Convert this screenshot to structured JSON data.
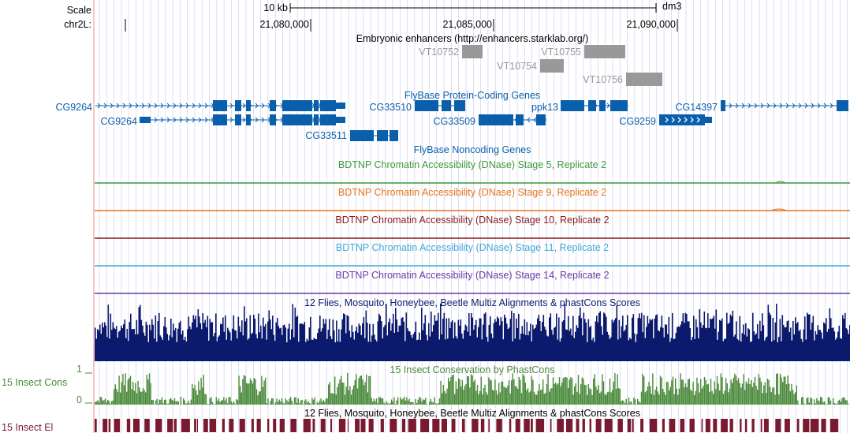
{
  "ruler": {
    "scale_label": "Scale",
    "scale_bar_label": "10 kb",
    "assembly": "dm3",
    "chrom_label": "chr2L:",
    "positions": [
      "21,080,000",
      "21,085,000",
      "21,090,000"
    ]
  },
  "enhancers": {
    "title": "Embryonic enhancers (http://enhancers.starklab.org/)",
    "items": [
      "VT10752",
      "VT10755",
      "VT10754",
      "VT10756"
    ]
  },
  "genes": {
    "title": "FlyBase Protein-Coding Genes",
    "names": [
      "CG9264",
      "CG9264",
      "CG33510",
      "ppk13",
      "CG14397",
      "CG33509",
      "CG9259",
      "CG33511"
    ]
  },
  "noncoding": {
    "title": "FlyBase Noncoding Genes"
  },
  "dnase_tracks": [
    {
      "title": "BDTNP Chromatin Accessibility (DNase) Stage 5, Replicate 2",
      "color": "#3c9a3c"
    },
    {
      "title": "BDTNP Chromatin Accessibility (DNase) Stage 9, Replicate 2",
      "color": "#e8741c"
    },
    {
      "title": "BDTNP Chromatin Accessibility (DNase) Stage 10, Replicate 2",
      "color": "#8b1a1a"
    },
    {
      "title": "BDTNP Chromatin Accessibility (DNase) Stage 11, Replicate 2",
      "color": "#3ea8d8"
    },
    {
      "title": "BDTNP Chromatin Accessibility (DNase) Stage 14, Replicate 2",
      "color": "#6a3aa8"
    }
  ],
  "multiz": {
    "title": "12 Flies, Mosquito, Honeybee, Beetle Multiz Alignments & phastCons Scores",
    "color": "#0c1a6e"
  },
  "phastcons": {
    "title": "15 Insect Conservation by PhastCons",
    "side_label": "15 Insect Cons",
    "ymax_label": "1",
    "ymin_label": "0",
    "color": "#4a8a3a"
  },
  "elements": {
    "title": "12 Flies, Mosquito, Honeybee, Beetle Multiz Alignments & phastCons Scores",
    "side_label": "15 Insect El",
    "color": "#7a1a30"
  },
  "colors": {
    "gene": "#0a5fac",
    "enhancer": "#999999",
    "grid": "#c8c8f0",
    "left_border": "#f4b0b0"
  }
}
